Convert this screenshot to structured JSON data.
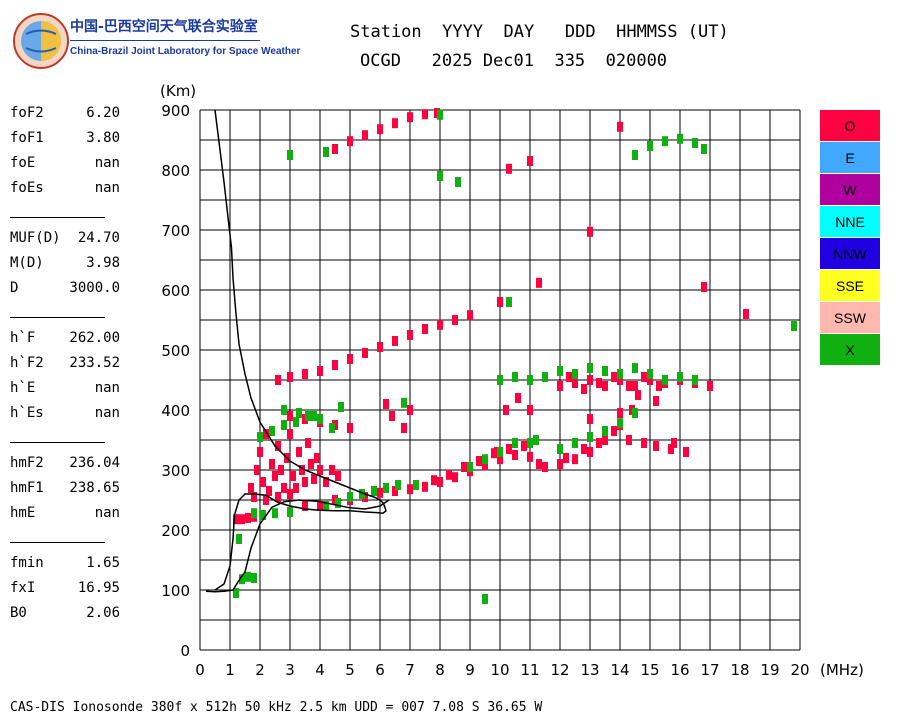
{
  "logo": {
    "name_cn": "中国-巴西空间天气联合实验室",
    "name_en": "China-Brazil Joint Laboratory for Space Weather"
  },
  "header": {
    "line1": "Station  YYYY  DAY   DDD  HHMMSS (UT)",
    "line2": "OCGD   2025 Dec01  335  020000"
  },
  "params": [
    {
      "label": "foF2",
      "value": "6.20"
    },
    {
      "label": "foF1",
      "value": "3.80"
    },
    {
      "label": "foE",
      "value": "nan"
    },
    {
      "label": "foEs",
      "value": "nan"
    },
    {
      "label": "MUF(D)",
      "value": "24.70"
    },
    {
      "label": "M(D)",
      "value": "3.98"
    },
    {
      "label": "D",
      "value": "3000.0"
    },
    {
      "label": "h`F",
      "value": "262.00"
    },
    {
      "label": "h`F2",
      "value": "233.52"
    },
    {
      "label": "h`E",
      "value": "nan"
    },
    {
      "label": "h`Es",
      "value": "nan"
    },
    {
      "label": "hmF2",
      "value": "236.04"
    },
    {
      "label": "hmF1",
      "value": "238.65"
    },
    {
      "label": "hmE",
      "value": "nan"
    },
    {
      "label": "fmin",
      "value": "1.65"
    },
    {
      "label": "fxI",
      "value": "16.95"
    },
    {
      "label": "B0",
      "value": "2.06"
    }
  ],
  "legend": [
    {
      "label": "O",
      "color": "#ff0040"
    },
    {
      "label": "E",
      "color": "#40a8ff"
    },
    {
      "label": "W",
      "color": "#b000a0"
    },
    {
      "label": "NNE",
      "color": "#00ffff"
    },
    {
      "label": "NNW",
      "color": "#2000e0"
    },
    {
      "label": "SSE",
      "color": "#ffff20"
    },
    {
      "label": "SSW",
      "color": "#ffb8b0"
    },
    {
      "label": "X",
      "color": "#10b010"
    }
  ],
  "footer": "CAS-DIS Ionosonde 380f x 512h 50 kHz 2.5 km UDD = 007 7.08 S 36.65 W",
  "chart_data": {
    "type": "scatter",
    "xlabel": "(MHz)",
    "ylabel": "(Km)",
    "xlim": [
      0,
      20
    ],
    "ylim": [
      0,
      900
    ],
    "x_ticks": [
      0,
      1,
      2,
      3,
      4,
      5,
      6,
      7,
      8,
      9,
      10,
      11,
      12,
      13,
      14,
      15,
      16,
      17,
      18,
      19,
      20
    ],
    "y_ticks": [
      0,
      100,
      200,
      300,
      400,
      500,
      600,
      700,
      800,
      900
    ],
    "grid": true,
    "series": [
      {
        "name": "O",
        "color": "#ff0040",
        "points": [
          [
            1.2,
            218
          ],
          [
            1.4,
            218
          ],
          [
            1.6,
            220
          ],
          [
            1.8,
            222
          ],
          [
            1.7,
            270
          ],
          [
            1.9,
            300
          ],
          [
            2.0,
            330
          ],
          [
            2.2,
            360
          ],
          [
            2.1,
            280
          ],
          [
            2.3,
            265
          ],
          [
            2.4,
            310
          ],
          [
            2.5,
            290
          ],
          [
            2.6,
            340
          ],
          [
            2.7,
            300
          ],
          [
            2.8,
            270
          ],
          [
            2.9,
            320
          ],
          [
            3.0,
            360
          ],
          [
            3.1,
            290
          ],
          [
            3.2,
            270
          ],
          [
            3.3,
            330
          ],
          [
            3.4,
            300
          ],
          [
            3.5,
            280
          ],
          [
            3.6,
            345
          ],
          [
            3.7,
            310
          ],
          [
            3.8,
            285
          ],
          [
            3.9,
            320
          ],
          [
            4.0,
            300
          ],
          [
            4.2,
            280
          ],
          [
            4.4,
            300
          ],
          [
            4.6,
            290
          ],
          [
            1.8,
            255
          ],
          [
            2.2,
            250
          ],
          [
            2.6,
            255
          ],
          [
            3.0,
            260
          ],
          [
            3.5,
            240
          ],
          [
            4.0,
            240
          ],
          [
            4.5,
            250
          ],
          [
            5.0,
            250
          ],
          [
            5.5,
            255
          ],
          [
            6.0,
            262
          ],
          [
            6.5,
            265
          ],
          [
            7.0,
            268
          ],
          [
            7.5,
            272
          ],
          [
            8.0,
            280
          ],
          [
            8.5,
            288
          ],
          [
            9.0,
            298
          ],
          [
            9.5,
            308
          ],
          [
            10.0,
            318
          ],
          [
            10.5,
            325
          ],
          [
            11.0,
            322
          ],
          [
            7.8,
            283
          ],
          [
            8.3,
            292
          ],
          [
            8.8,
            305
          ],
          [
            9.3,
            315
          ],
          [
            9.8,
            328
          ],
          [
            10.3,
            335
          ],
          [
            10.8,
            340
          ],
          [
            11.3,
            310
          ],
          [
            11.5,
            305
          ],
          [
            12.0,
            310
          ],
          [
            12.5,
            318
          ],
          [
            13.0,
            330
          ],
          [
            13.5,
            350
          ],
          [
            14.0,
            375
          ],
          [
            14.4,
            400
          ],
          [
            12.2,
            320
          ],
          [
            12.8,
            335
          ],
          [
            13.3,
            345
          ],
          [
            13.8,
            365
          ],
          [
            12.0,
            440
          ],
          [
            12.5,
            445
          ],
          [
            13.0,
            450
          ],
          [
            13.5,
            440
          ],
          [
            14.0,
            450
          ],
          [
            14.5,
            440
          ],
          [
            15.0,
            450
          ],
          [
            15.5,
            445
          ],
          [
            12.3,
            455
          ],
          [
            12.8,
            435
          ],
          [
            13.3,
            445
          ],
          [
            13.8,
            455
          ],
          [
            14.3,
            440
          ],
          [
            14.8,
            455
          ],
          [
            15.3,
            440
          ],
          [
            16.0,
            450
          ],
          [
            16.5,
            445
          ],
          [
            17.0,
            440
          ],
          [
            14.3,
            350
          ],
          [
            14.8,
            345
          ],
          [
            15.2,
            340
          ],
          [
            15.7,
            335
          ],
          [
            16.2,
            330
          ],
          [
            2.6,
            450
          ],
          [
            3.0,
            455
          ],
          [
            3.5,
            460
          ],
          [
            4.0,
            465
          ],
          [
            4.5,
            475
          ],
          [
            5.0,
            485
          ],
          [
            5.5,
            495
          ],
          [
            6.0,
            505
          ],
          [
            6.5,
            515
          ],
          [
            7.0,
            525
          ],
          [
            7.5,
            535
          ],
          [
            8.0,
            542
          ],
          [
            8.5,
            550
          ],
          [
            9.0,
            558
          ],
          [
            4.5,
            835
          ],
          [
            5.0,
            848
          ],
          [
            5.5,
            858
          ],
          [
            6.0,
            868
          ],
          [
            6.5,
            878
          ],
          [
            7.0,
            888
          ],
          [
            7.5,
            893
          ],
          [
            7.9,
            895
          ],
          [
            4.0,
            380
          ],
          [
            4.5,
            375
          ],
          [
            5.0,
            370
          ],
          [
            3.0,
            390
          ],
          [
            3.5,
            385
          ],
          [
            6.2,
            410
          ],
          [
            6.4,
            390
          ],
          [
            7.0,
            400
          ],
          [
            6.8,
            370
          ],
          [
            10.0,
            580
          ],
          [
            11.3,
            612
          ],
          [
            10.3,
            802
          ],
          [
            11.0,
            815
          ],
          [
            13.0,
            697
          ],
          [
            14.0,
            872
          ],
          [
            16.8,
            605
          ],
          [
            18.2,
            560
          ],
          [
            9.9,
            330
          ],
          [
            10.6,
            420
          ],
          [
            10.2,
            400
          ],
          [
            11.0,
            400
          ],
          [
            14.6,
            425
          ],
          [
            15.2,
            415
          ],
          [
            15.8,
            345
          ],
          [
            14.0,
            395
          ],
          [
            13.0,
            385
          ]
        ]
      },
      {
        "name": "X",
        "color": "#10b010",
        "points": [
          [
            1.2,
            95
          ],
          [
            1.4,
            118
          ],
          [
            1.6,
            122
          ],
          [
            1.8,
            120
          ],
          [
            1.8,
            228
          ],
          [
            2.1,
            225
          ],
          [
            2.5,
            228
          ],
          [
            3.0,
            230
          ],
          [
            2.0,
            355
          ],
          [
            2.4,
            365
          ],
          [
            2.8,
            375
          ],
          [
            3.2,
            380
          ],
          [
            3.6,
            390
          ],
          [
            4.0,
            385
          ],
          [
            4.4,
            370
          ],
          [
            4.7,
            405
          ],
          [
            4.2,
            240
          ],
          [
            4.6,
            245
          ],
          [
            5.0,
            255
          ],
          [
            5.4,
            260
          ],
          [
            5.8,
            265
          ],
          [
            6.2,
            270
          ],
          [
            6.6,
            275
          ],
          [
            7.2,
            275
          ],
          [
            9.0,
            305
          ],
          [
            9.5,
            318
          ],
          [
            10.0,
            330
          ],
          [
            10.5,
            345
          ],
          [
            11.0,
            345
          ],
          [
            11.2,
            350
          ],
          [
            12.0,
            335
          ],
          [
            12.5,
            345
          ],
          [
            13.0,
            355
          ],
          [
            13.5,
            365
          ],
          [
            14.0,
            378
          ],
          [
            14.5,
            395
          ],
          [
            10.0,
            450
          ],
          [
            10.5,
            455
          ],
          [
            11.0,
            450
          ],
          [
            11.5,
            455
          ],
          [
            12.0,
            465
          ],
          [
            12.5,
            460
          ],
          [
            13.0,
            470
          ],
          [
            13.5,
            465
          ],
          [
            14.0,
            460
          ],
          [
            14.5,
            470
          ],
          [
            15.0,
            460
          ],
          [
            15.5,
            450
          ],
          [
            16.0,
            455
          ],
          [
            16.5,
            450
          ],
          [
            3.0,
            825
          ],
          [
            4.2,
            830
          ],
          [
            8.0,
            790
          ],
          [
            8.6,
            780
          ],
          [
            14.5,
            825
          ],
          [
            15.0,
            840
          ],
          [
            15.5,
            848
          ],
          [
            16.0,
            852
          ],
          [
            16.5,
            845
          ],
          [
            16.8,
            835
          ],
          [
            8.0,
            892
          ],
          [
            10.3,
            580
          ],
          [
            19.8,
            540
          ],
          [
            9.5,
            85
          ],
          [
            1.3,
            185
          ],
          [
            3.3,
            395
          ],
          [
            3.8,
            390
          ],
          [
            2.8,
            400
          ],
          [
            6.8,
            412
          ]
        ]
      }
    ],
    "virtual_height_trace": {
      "name": "trace",
      "color": "#000000",
      "x": [
        0.5,
        0.8,
        1.05,
        1.1,
        1.2,
        1.3,
        1.5,
        1.7,
        2.0,
        2.5,
        3.0,
        3.5,
        4.0,
        4.5,
        5.0,
        5.5,
        5.8,
        6.0,
        6.1,
        6.15,
        6.2,
        6.1,
        5.9,
        5.5,
        5.0,
        4.5,
        4.0,
        3.5,
        3.0,
        2.6,
        2.2,
        1.8,
        1.5,
        1.3,
        1.15,
        1.1,
        1.0,
        0.8,
        0.5
      ],
      "y": [
        900,
        780,
        670,
        620,
        560,
        510,
        460,
        420,
        380,
        340,
        315,
        300,
        290,
        280,
        270,
        260,
        255,
        250,
        245,
        240,
        232,
        228,
        229,
        230,
        232,
        232,
        233,
        235,
        240,
        246,
        258,
        260,
        260,
        250,
        225,
        185,
        140,
        110,
        100
      ]
    },
    "lower_trace": {
      "name": "trace2",
      "color": "#000000",
      "x": [
        0.2,
        0.5,
        0.8,
        1.1,
        1.25,
        1.35,
        1.5,
        1.7,
        2.0,
        2.4,
        2.8,
        3.3,
        3.9,
        4.5,
        5.0,
        5.5,
        6.0,
        6.3
      ],
      "y": [
        98,
        97,
        98,
        100,
        112,
        120,
        130,
        170,
        210,
        238,
        247,
        250,
        248,
        242,
        237,
        235,
        240,
        250
      ]
    }
  }
}
